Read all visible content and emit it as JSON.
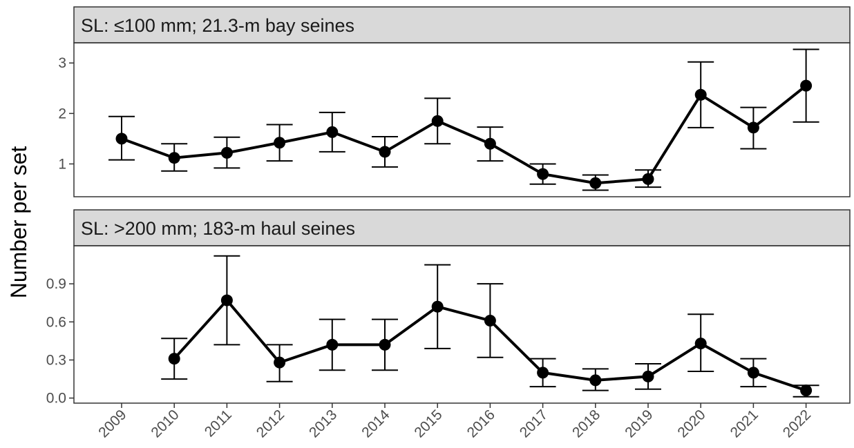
{
  "ylabel": "Number per set",
  "x_categories": [
    "2009",
    "2010",
    "2011",
    "2012",
    "2013",
    "2014",
    "2015",
    "2016",
    "2017",
    "2018",
    "2019",
    "2020",
    "2021",
    "2022"
  ],
  "colors": {
    "strip_fill": "#d9d9d9",
    "panel_border": "#333333",
    "series": "#000000",
    "tick_text": "#4d4d4d",
    "tick_mark": "#333333"
  },
  "chart_data": [
    {
      "type": "line",
      "panel_title": "SL: ≤100 mm; 21.3-m bay seines",
      "ylim": [
        0.35,
        3.4
      ],
      "yticks": [
        1,
        2,
        3
      ],
      "ytick_labels": [
        "1",
        "2",
        "3"
      ],
      "grid": false,
      "x": [
        "2009",
        "2010",
        "2011",
        "2012",
        "2013",
        "2014",
        "2015",
        "2016",
        "2017",
        "2018",
        "2019",
        "2020",
        "2021",
        "2022"
      ],
      "y": [
        1.5,
        1.12,
        1.22,
        1.42,
        1.63,
        1.24,
        1.85,
        1.4,
        0.8,
        0.62,
        0.7,
        2.37,
        1.72,
        2.55
      ],
      "y_lower": [
        1.08,
        0.86,
        0.92,
        1.06,
        1.24,
        0.94,
        1.4,
        1.06,
        0.6,
        0.48,
        0.54,
        1.72,
        1.3,
        1.83
      ],
      "y_upper": [
        1.94,
        1.4,
        1.53,
        1.78,
        2.02,
        1.54,
        2.3,
        1.73,
        1.0,
        0.78,
        0.88,
        3.02,
        2.12,
        3.27
      ]
    },
    {
      "type": "line",
      "panel_title": "SL: >200 mm; 183-m haul seines",
      "ylim": [
        -0.04,
        1.2
      ],
      "yticks": [
        0.0,
        0.3,
        0.6,
        0.9
      ],
      "ytick_labels": [
        "0.0",
        "0.3",
        "0.6",
        "0.9"
      ],
      "grid": false,
      "x": [
        "2010",
        "2011",
        "2012",
        "2013",
        "2014",
        "2015",
        "2016",
        "2017",
        "2018",
        "2019",
        "2020",
        "2021",
        "2022"
      ],
      "y": [
        0.31,
        0.77,
        0.28,
        0.42,
        0.42,
        0.72,
        0.61,
        0.2,
        0.14,
        0.17,
        0.43,
        0.2,
        0.06
      ],
      "y_lower": [
        0.15,
        0.42,
        0.13,
        0.22,
        0.22,
        0.39,
        0.32,
        0.09,
        0.06,
        0.07,
        0.21,
        0.09,
        0.01
      ],
      "y_upper": [
        0.47,
        1.12,
        0.42,
        0.62,
        0.62,
        1.05,
        0.9,
        0.31,
        0.23,
        0.27,
        0.66,
        0.31,
        0.1
      ]
    }
  ]
}
